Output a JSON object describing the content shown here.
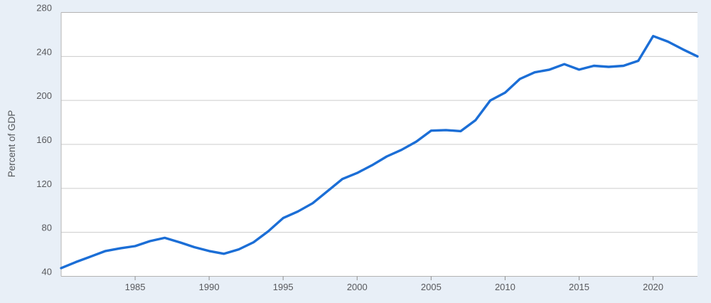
{
  "chart_data": {
    "type": "line",
    "title": "",
    "ylabel": "Percent of GDP",
    "xlabel": "",
    "legend": "none",
    "grid": "horizontal-only",
    "x_range": [
      1980,
      2023
    ],
    "ylim": [
      40,
      280
    ],
    "y_ticks": [
      40,
      80,
      120,
      160,
      200,
      240,
      280
    ],
    "x_ticks": [
      1985,
      1990,
      1995,
      2000,
      2005,
      2010,
      2015,
      2020
    ],
    "x": [
      1980,
      1981,
      1982,
      1983,
      1984,
      1985,
      1986,
      1987,
      1988,
      1989,
      1990,
      1991,
      1992,
      1993,
      1994,
      1995,
      1996,
      1997,
      1998,
      1999,
      2000,
      2001,
      2002,
      2003,
      2004,
      2005,
      2006,
      2007,
      2008,
      2009,
      2010,
      2011,
      2012,
      2013,
      2014,
      2015,
      2016,
      2017,
      2018,
      2019,
      2020,
      2021,
      2022,
      2023
    ],
    "series": [
      {
        "name": "Percent of GDP",
        "values": [
          47.5,
          53,
          58,
          63,
          65.5,
          67.5,
          72,
          75,
          71,
          66.5,
          63,
          60.5,
          64.5,
          71,
          81,
          93,
          99,
          106.5,
          117.5,
          128.5,
          134,
          141,
          149,
          155,
          162.5,
          172.5,
          173,
          172,
          182,
          200,
          207,
          219.5,
          225.5,
          228,
          233,
          228,
          231.5,
          230.5,
          231.5,
          236,
          258.5,
          253.5,
          246.5,
          240
        ]
      }
    ],
    "colors": {
      "line": "#1b6ed6",
      "page_background": "#e8eff7",
      "plot_background": "#ffffff",
      "gridline": "#cccccc",
      "axis_border": "#b3b3b3",
      "tick_mark": "#909090",
      "tick_label": "#58595d",
      "axis_title": "#55585c"
    }
  }
}
